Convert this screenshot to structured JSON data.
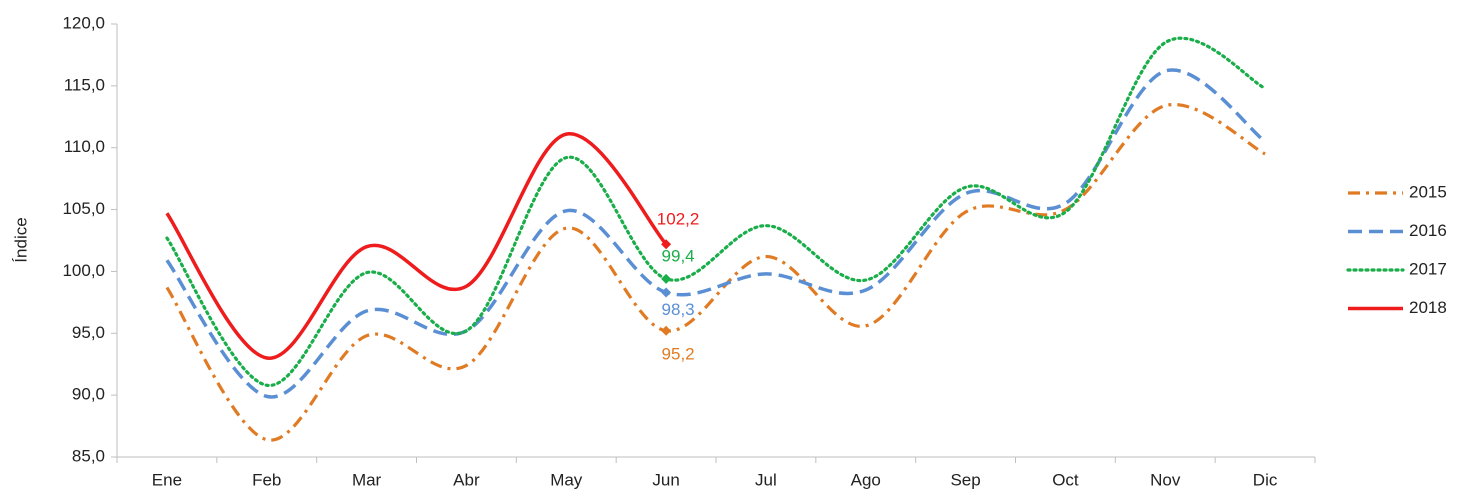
{
  "chart_data": {
    "type": "line",
    "y_label": "Índice",
    "categories": [
      "Ene",
      "Feb",
      "Mar",
      "Abr",
      "May",
      "Jun",
      "Jul",
      "Ago",
      "Sep",
      "Oct",
      "Nov",
      "Dic"
    ],
    "ylim": [
      85,
      120
    ],
    "yticks": [
      {
        "value": 85,
        "label": "85,0"
      },
      {
        "value": 90,
        "label": "90,0"
      },
      {
        "value": 95,
        "label": "95,0"
      },
      {
        "value": 100,
        "label": "100,0"
      },
      {
        "value": 105,
        "label": "105,0"
      },
      {
        "value": 110,
        "label": "110,0"
      },
      {
        "value": 115,
        "label": "115,0"
      },
      {
        "value": 120,
        "label": "120,0"
      }
    ],
    "smooth": true,
    "legend": "right",
    "series": [
      {
        "name": "2015",
        "color": "#e07b24",
        "dash": "dashdot",
        "values": [
          98.7,
          86.4,
          94.8,
          92.4,
          103.5,
          95.2,
          101.2,
          95.6,
          104.8,
          105.0,
          113.4,
          109.5
        ],
        "value_labels": [
          null,
          null,
          null,
          null,
          null,
          "95,2",
          null,
          null,
          null,
          null,
          null,
          null
        ]
      },
      {
        "name": "2016",
        "color": "#5b8fd4",
        "dash": "dashed",
        "values": [
          100.9,
          89.9,
          96.8,
          95.2,
          104.9,
          98.3,
          99.8,
          98.5,
          106.3,
          105.5,
          116.2,
          110.5
        ],
        "value_labels": [
          null,
          null,
          null,
          null,
          null,
          "98,3",
          null,
          null,
          null,
          null,
          null,
          null
        ]
      },
      {
        "name": "2017",
        "color": "#1aae4a",
        "dash": "dotted",
        "values": [
          102.7,
          90.8,
          99.9,
          95.2,
          109.2,
          99.4,
          103.7,
          99.3,
          106.8,
          104.8,
          118.5,
          114.8
        ],
        "value_labels": [
          null,
          null,
          null,
          null,
          null,
          "99,4",
          null,
          null,
          null,
          null,
          null,
          null
        ]
      },
      {
        "name": "2018",
        "color": "#ee1c1c",
        "dash": "solid",
        "values": [
          104.7,
          93.0,
          102.0,
          98.8,
          111.1,
          102.2,
          null,
          null,
          null,
          null,
          null,
          null
        ],
        "value_labels": [
          null,
          null,
          null,
          null,
          null,
          "102,2",
          null,
          null,
          null,
          null,
          null,
          null
        ]
      }
    ]
  }
}
